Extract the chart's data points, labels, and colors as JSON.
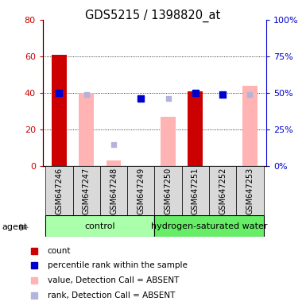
{
  "title": "GDS5215 / 1398820_at",
  "samples": [
    "GSM647246",
    "GSM647247",
    "GSM647248",
    "GSM647249",
    "GSM647250",
    "GSM647251",
    "GSM647252",
    "GSM647253"
  ],
  "count_values": [
    61,
    null,
    null,
    null,
    null,
    41,
    null,
    null
  ],
  "count_color": "#cc0000",
  "value_absent_values": [
    null,
    40,
    3,
    null,
    27,
    null,
    null,
    44
  ],
  "value_absent_color": "#ffb3b3",
  "rank_absent_values": [
    null,
    49,
    15,
    null,
    46,
    null,
    49,
    49
  ],
  "rank_absent_color": "#b3b3dd",
  "percentile_values": [
    50,
    null,
    null,
    46,
    null,
    50,
    49,
    null
  ],
  "percentile_color": "#0000cc",
  "ylim_left": [
    0,
    80
  ],
  "ylim_right": [
    0,
    100
  ],
  "yticks_left": [
    0,
    20,
    40,
    60,
    80
  ],
  "yticks_right": [
    0,
    25,
    50,
    75,
    100
  ],
  "ylabel_left_color": "#cc0000",
  "ylabel_right_color": "#0000cc",
  "control_color": "#aaffaa",
  "hydrogen_color": "#66ee66",
  "legend_items": [
    {
      "label": "count",
      "color": "#cc0000"
    },
    {
      "label": "percentile rank within the sample",
      "color": "#0000cc"
    },
    {
      "label": "value, Detection Call = ABSENT",
      "color": "#ffb3b3"
    },
    {
      "label": "rank, Detection Call = ABSENT",
      "color": "#b3b3dd"
    }
  ]
}
